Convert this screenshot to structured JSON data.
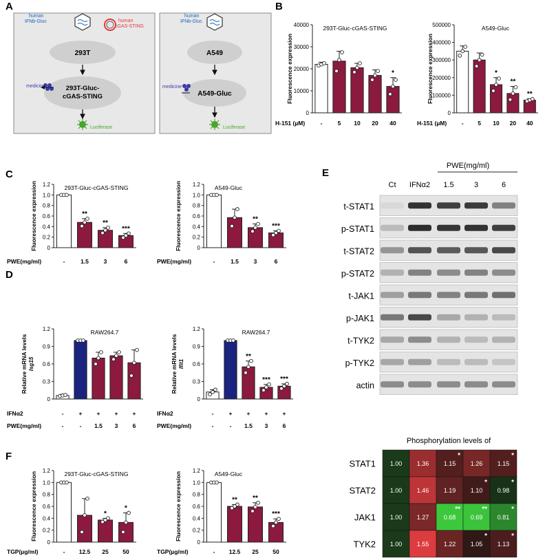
{
  "panel_letters": {
    "a": "A",
    "b": "B",
    "c": "C",
    "d": "D",
    "e": "E",
    "f": "F"
  },
  "colors": {
    "maroon": "#8b1a3e",
    "navy": "#1a237e",
    "box_fill": "#e8e8e8",
    "ellipse": "#d0d0d0",
    "blot_bg": "#e6e6e6",
    "luciferase": "#4aa52e",
    "medicine": "#3a3aa8",
    "plasmid_red": "#e53935",
    "label_blue": "#1565c0"
  },
  "schematic_left": {
    "plasmid1_line1": "human",
    "plasmid1_line2": "IFNb-Gluc",
    "plasmid2_line1": "human",
    "plasmid2_line2": "cGAS-STING",
    "cell": "293T",
    "medicine": "medicine",
    "product_line1": "293T-Gluc-",
    "product_line2": "cGAS-STING",
    "luciferase": "Luciferase"
  },
  "schematic_right": {
    "plasmid1_line1": "human",
    "plasmid1_line2": "IFNb-Gluc",
    "cell": "A549",
    "medicine": "medicine",
    "product": "A549-Gluc",
    "luciferase": "Luciferase"
  },
  "chart_data": [
    {
      "id": "B1",
      "type": "bar",
      "title": "293T-Gluc-cGAS-STING",
      "ylabel": "Fluorescence expression",
      "xlabel": "H-151 (µM)",
      "categories": [
        "-",
        "5",
        "10",
        "20",
        "40"
      ],
      "values": [
        22000,
        23500,
        20500,
        17000,
        12000
      ],
      "errors": [
        1000,
        4500,
        2000,
        2500,
        4000
      ],
      "points": [
        [
          21500,
          22000,
          22500
        ],
        [
          19000,
          24000,
          27500
        ],
        [
          18500,
          20500,
          22500
        ],
        [
          15000,
          17000,
          19000
        ],
        [
          8500,
          12000,
          15000
        ]
      ],
      "sig": [
        "",
        "",
        "",
        "",
        "*"
      ],
      "ylim": [
        0,
        40000
      ],
      "ticks": [
        0,
        10000,
        20000,
        30000,
        40000
      ],
      "bar_colors": [
        "white",
        "maroon",
        "maroon",
        "maroon",
        "maroon"
      ]
    },
    {
      "id": "B2",
      "type": "bar",
      "title": "A549-Gluc",
      "ylabel": "Fluorescence expression",
      "xlabel": "H-151 (µM)",
      "categories": [
        "-",
        "5",
        "10",
        "20",
        "40"
      ],
      "values": [
        350000,
        300000,
        160000,
        110000,
        72000
      ],
      "errors": [
        30000,
        40000,
        40000,
        40000,
        8000
      ],
      "points": [
        [
          325000,
          350000,
          375000
        ],
        [
          265000,
          300000,
          330000
        ],
        [
          125000,
          160000,
          195000
        ],
        [
          75000,
          110000,
          145000
        ],
        [
          66000,
          72000,
          78000
        ]
      ],
      "sig": [
        "",
        "",
        "*",
        "**",
        "**"
      ],
      "ylim": [
        0,
        500000
      ],
      "ticks": [
        0,
        100000,
        200000,
        300000,
        400000,
        500000
      ],
      "bar_colors": [
        "white",
        "maroon",
        "maroon",
        "maroon",
        "maroon"
      ]
    },
    {
      "id": "C1",
      "type": "bar",
      "title": "293T-Gluc-cGAS-STING",
      "ylabel": "Fluorescence expression",
      "xlabel": "PWE(mg/ml)",
      "categories": [
        "-",
        "1.5",
        "3",
        "6"
      ],
      "values": [
        1.0,
        0.48,
        0.33,
        0.23
      ],
      "errors": [
        0,
        0.07,
        0.05,
        0.04
      ],
      "points": [
        [
          1.0,
          1.0,
          1.0
        ],
        [
          0.41,
          0.48,
          0.55
        ],
        [
          0.28,
          0.33,
          0.38
        ],
        [
          0.19,
          0.23,
          0.27
        ]
      ],
      "sig": [
        "",
        "**",
        "**",
        "***"
      ],
      "ylim": [
        0,
        1.2
      ],
      "ticks": [
        0,
        0.2,
        0.4,
        0.6,
        0.8,
        1.0,
        1.2
      ],
      "bar_colors": [
        "white",
        "maroon",
        "maroon",
        "maroon"
      ]
    },
    {
      "id": "C2",
      "type": "bar",
      "title": "A549-Gluc",
      "ylabel": "Fluorescence expression",
      "xlabel": "PWE(mg/ml)",
      "categories": [
        "-",
        "1.5",
        "3",
        "6"
      ],
      "values": [
        1.0,
        0.57,
        0.38,
        0.28
      ],
      "errors": [
        0,
        0.16,
        0.07,
        0.04
      ],
      "points": [
        [
          1.0,
          1.0,
          1.0
        ],
        [
          0.41,
          0.57,
          0.73
        ],
        [
          0.31,
          0.38,
          0.45
        ],
        [
          0.24,
          0.28,
          0.32
        ]
      ],
      "sig": [
        "",
        "",
        "**",
        "***"
      ],
      "ylim": [
        0,
        1.2
      ],
      "ticks": [
        0,
        0.2,
        0.4,
        0.6,
        0.8,
        1.0,
        1.2
      ],
      "bar_colors": [
        "white",
        "maroon",
        "maroon",
        "maroon"
      ]
    },
    {
      "id": "D1",
      "type": "bar",
      "title": "RAW264.7",
      "ylabel": "Relative mRNA levels",
      "ylabel2": "Isg15",
      "xlabel": "IFNα2",
      "xlabel2": "PWE(mg/ml)",
      "categories": [
        "-",
        "+",
        "+",
        "+",
        "+"
      ],
      "categories2": [
        "-",
        "-",
        "1.5",
        "3",
        "6"
      ],
      "values": [
        0.06,
        1.0,
        0.7,
        0.74,
        0.62
      ],
      "errors": [
        0.02,
        0,
        0.1,
        0.06,
        0.22
      ],
      "points": [
        [
          0.05,
          0.06,
          0.07
        ],
        [
          1.0,
          1.0,
          1.0
        ],
        [
          0.6,
          0.7,
          0.8
        ],
        [
          0.68,
          0.74,
          0.8
        ],
        [
          0.4,
          0.62,
          0.84
        ]
      ],
      "sig": [
        "",
        "",
        "",
        "",
        ""
      ],
      "ylim": [
        0,
        1.2
      ],
      "ticks": [
        0,
        0.3,
        0.6,
        0.9,
        1.2
      ],
      "bar_colors": [
        "white",
        "navy",
        "maroon",
        "maroon",
        "maroon"
      ]
    },
    {
      "id": "D2",
      "type": "bar",
      "title": "RAW264.7",
      "ylabel": "Relative mRNA levels",
      "ylabel2": "Ifit1",
      "xlabel": "IFNα2",
      "xlabel2": "PWE(mg/ml)",
      "categories": [
        "-",
        "+",
        "+",
        "+",
        "+"
      ],
      "categories2": [
        "-",
        "-",
        "1.5",
        "3",
        "6"
      ],
      "values": [
        0.12,
        1.0,
        0.55,
        0.2,
        0.22
      ],
      "errors": [
        0.04,
        0,
        0.1,
        0.05,
        0.04
      ],
      "points": [
        [
          0.08,
          0.12,
          0.16
        ],
        [
          1.0,
          1.0,
          1.0
        ],
        [
          0.45,
          0.55,
          0.65
        ],
        [
          0.15,
          0.2,
          0.25
        ],
        [
          0.18,
          0.22,
          0.26
        ]
      ],
      "sig": [
        "",
        "",
        "**",
        "***",
        "***"
      ],
      "ylim": [
        0,
        1.2
      ],
      "ticks": [
        0,
        0.3,
        0.6,
        0.9,
        1.2
      ],
      "bar_colors": [
        "white",
        "navy",
        "maroon",
        "maroon",
        "maroon"
      ]
    },
    {
      "id": "F1",
      "type": "bar",
      "title": "293T-Gluc-cGAS-STING",
      "ylabel": "Fluorescence expression",
      "xlabel": "TGP(µg/ml)",
      "categories": [
        "-",
        "12.5",
        "25",
        "50"
      ],
      "values": [
        1.0,
        0.45,
        0.37,
        0.33
      ],
      "errors": [
        0,
        0.28,
        0.03,
        0.16
      ],
      "points": [
        [
          1.0,
          1.0,
          1.0
        ],
        [
          0.17,
          0.45,
          0.73
        ],
        [
          0.34,
          0.37,
          0.4
        ],
        [
          0.17,
          0.33,
          0.49
        ]
      ],
      "sig": [
        "",
        "",
        "*",
        "*"
      ],
      "ylim": [
        0,
        1.2
      ],
      "ticks": [
        0,
        0.2,
        0.4,
        0.6,
        0.8,
        1.0,
        1.2
      ],
      "bar_colors": [
        "white",
        "maroon",
        "maroon",
        "maroon"
      ]
    },
    {
      "id": "F2",
      "type": "bar",
      "title": "A549-Gluc",
      "ylabel": "Fluorescence expression",
      "xlabel": "TGP(µg/ml)",
      "categories": [
        "-",
        "12.5",
        "25",
        "50"
      ],
      "values": [
        1.0,
        0.6,
        0.59,
        0.33
      ],
      "errors": [
        0,
        0.03,
        0.07,
        0.06
      ],
      "points": [
        [
          1.0,
          1.0,
          1.0
        ],
        [
          0.57,
          0.6,
          0.63
        ],
        [
          0.52,
          0.59,
          0.66
        ],
        [
          0.27,
          0.33,
          0.39
        ]
      ],
      "sig": [
        "",
        "**",
        "**",
        "***"
      ],
      "ylim": [
        0,
        1.2
      ],
      "ticks": [
        0,
        0.2,
        0.4,
        0.6,
        0.8,
        1.0,
        1.2
      ],
      "bar_colors": [
        "white",
        "maroon",
        "maroon",
        "maroon"
      ]
    },
    {
      "id": "E_heatmap",
      "type": "heatmap",
      "title": "Phosphorylation levels of",
      "rows": [
        "STAT1",
        "STAT2",
        "JAK1",
        "TYK2"
      ],
      "values": [
        [
          1.0,
          1.36,
          1.15,
          1.26,
          1.15
        ],
        [
          1.0,
          1.46,
          1.19,
          1.1,
          0.98
        ],
        [
          1.0,
          1.27,
          0.68,
          0.69,
          0.81
        ],
        [
          1.0,
          1.55,
          1.22,
          1.05,
          1.13
        ]
      ],
      "labels": [
        [
          "1.00",
          "1.36",
          "1.15",
          "1.26",
          "1.15"
        ],
        [
          "1.00",
          "1.46",
          "1.19",
          "1.10",
          "0.98"
        ],
        [
          "1.00",
          "1.27",
          "0.68",
          "0.69",
          "0.81"
        ],
        [
          "1.00",
          "1.55",
          "1.22",
          "1.05",
          "1.13"
        ]
      ],
      "sig": [
        [
          "",
          "",
          "*",
          "",
          "*"
        ],
        [
          "",
          "",
          "",
          "*",
          "*"
        ],
        [
          "",
          "",
          "**",
          "**",
          "*"
        ],
        [
          "",
          "",
          "",
          "*",
          "*"
        ]
      ]
    }
  ],
  "blot": {
    "group_label": "PWE(mg/ml)",
    "lanes": [
      "Ct",
      "IFNα2",
      "1.5",
      "3",
      "6"
    ],
    "rows": [
      "t-STAT1",
      "p-STAT1",
      "t-STAT2",
      "p-STAT2",
      "t-JAK1",
      "p-JAK1",
      "t-TYK2",
      "p-TYK2",
      "actin"
    ],
    "intensity": [
      [
        0.05,
        0.92,
        0.85,
        0.88,
        0.5
      ],
      [
        0.2,
        0.95,
        0.9,
        0.92,
        0.85
      ],
      [
        0.4,
        0.75,
        0.7,
        0.72,
        0.8
      ],
      [
        0.25,
        0.5,
        0.45,
        0.5,
        0.45
      ],
      [
        0.35,
        0.55,
        0.5,
        0.55,
        0.6
      ],
      [
        0.55,
        0.8,
        0.3,
        0.25,
        0.2
      ],
      [
        0.3,
        0.45,
        0.25,
        0.2,
        0.25
      ],
      [
        0.3,
        0.35,
        0.2,
        0.2,
        0.15
      ],
      [
        0.45,
        0.45,
        0.45,
        0.45,
        0.45
      ]
    ]
  }
}
